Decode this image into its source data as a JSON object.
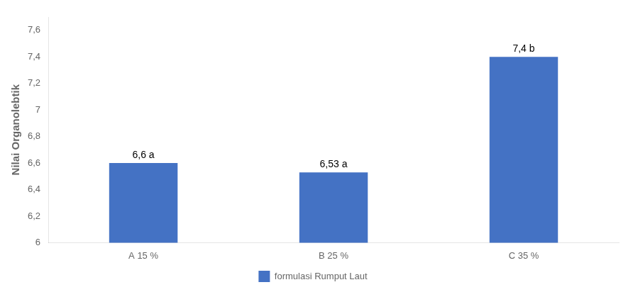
{
  "chart_data": {
    "type": "bar",
    "categories": [
      "A 15 %",
      "B 25 %",
      "C 35 %"
    ],
    "series": [
      {
        "name": "formulasi Rumput Laut",
        "color": "#4472C4",
        "values": [
          6.6,
          6.53,
          7.4
        ],
        "value_labels": [
          "6,6 a",
          "6,53 a",
          "7,4 b"
        ]
      }
    ],
    "ylabel": "Nilai Organolebtik",
    "ylim": [
      6,
      7.7
    ],
    "yticks": [
      6,
      {
        "value": 6.2,
        "label": "6,2"
      },
      {
        "value": 6.4,
        "label": "6,4"
      },
      {
        "value": 6.6,
        "label": "6,6"
      },
      {
        "value": 6.8,
        "label": "6,8"
      },
      7,
      {
        "value": 7.2,
        "label": "7,2"
      },
      {
        "value": 7.4,
        "label": "7,4"
      },
      {
        "value": 7.6,
        "label": "7,6"
      }
    ],
    "grid": false,
    "legend": "bottom"
  }
}
